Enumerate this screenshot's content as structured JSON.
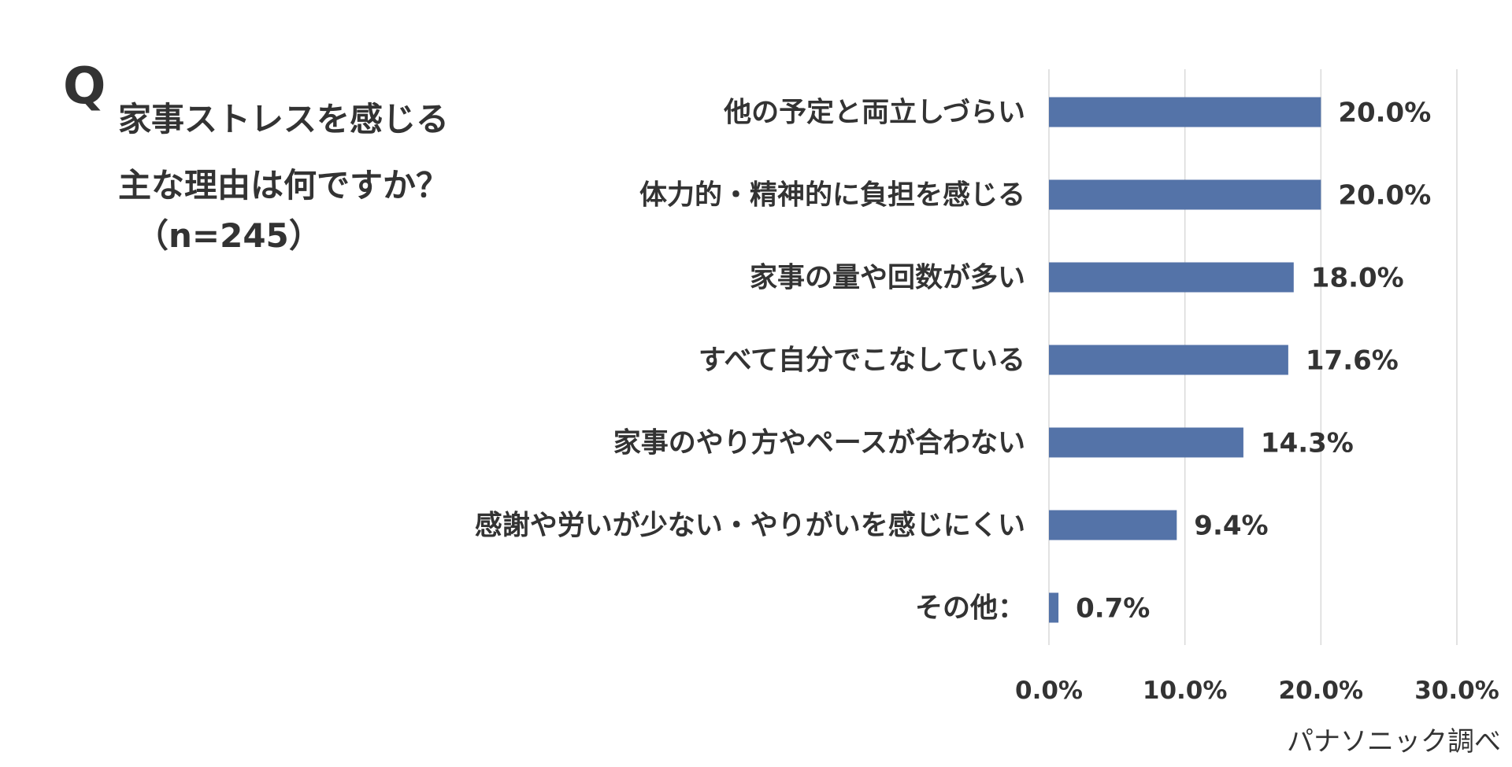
{
  "question": {
    "mark": "Q",
    "lines": [
      "家事ストレスを感じる",
      "主な理由は何ですか？"
    ],
    "sample": "（n=245）"
  },
  "source": "パナソニック調べ",
  "colors": {
    "bar": "#5473a8",
    "gridline": "#d9d9d9",
    "text": "#333333"
  },
  "chart_data": {
    "type": "bar",
    "orientation": "horizontal",
    "categories": [
      "他の予定と両立しづらい",
      "体力的・精神的に負担を感じる",
      "家事の量や回数が多い",
      "すべて自分でこなしている",
      "家事のやり方やペースが合わない",
      "感謝や労いが少ない・やりがいを感じにくい",
      "その他："
    ],
    "values": [
      20.0,
      20.0,
      18.0,
      17.6,
      14.3,
      9.4,
      0.7
    ],
    "value_labels": [
      "20.0%",
      "20.0%",
      "18.0%",
      "17.6%",
      "14.3%",
      "9.4%",
      "0.7%"
    ],
    "xlim": [
      0,
      30
    ],
    "ticks": [
      0,
      10,
      20,
      30
    ],
    "tick_labels": [
      "0.0%",
      "10.0%",
      "20.0%",
      "30.0%"
    ],
    "grid": true,
    "legend": "none"
  }
}
